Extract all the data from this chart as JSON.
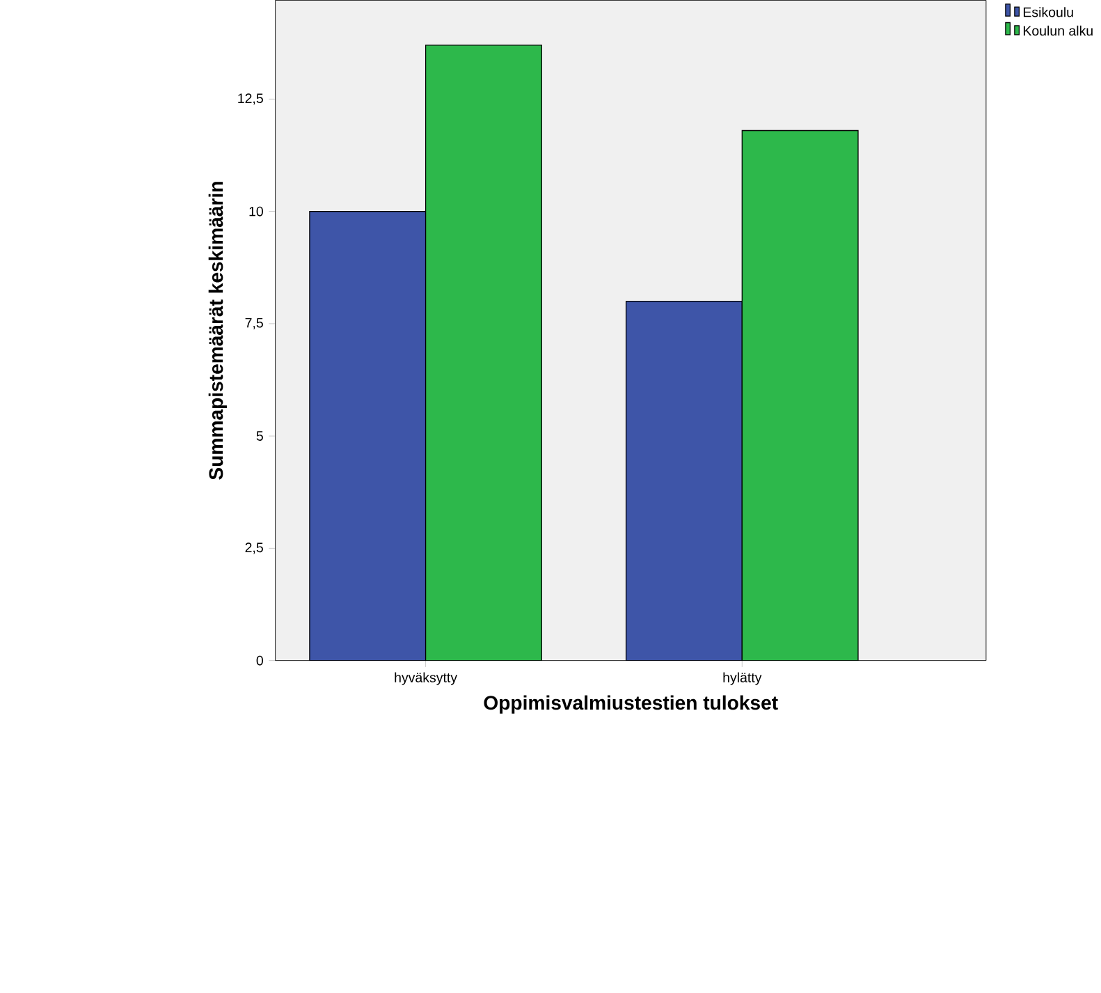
{
  "chart_data": {
    "type": "bar",
    "xlabel": "Oppimisvalmiustestien tulokset",
    "ylabel": "Summapistemäärät keskimäärin",
    "categories": [
      "hyväksytty",
      "hylätty"
    ],
    "series": [
      {
        "name": "Esikoulu",
        "color": "#3e55a8",
        "values": [
          10,
          8
        ]
      },
      {
        "name": "Koulun alku",
        "color": "#2db84b",
        "values": [
          13.7,
          11.8
        ]
      }
    ],
    "ylim": [
      0,
      14.7
    ],
    "yticks": [
      0,
      {
        "value": 2.5,
        "label": "2,5"
      },
      10,
      {
        "value": 7.5,
        "label": "7,5"
      },
      5,
      {
        "value": 12.5,
        "label": "12,5"
      }
    ],
    "grid": false,
    "legend": "top right"
  }
}
